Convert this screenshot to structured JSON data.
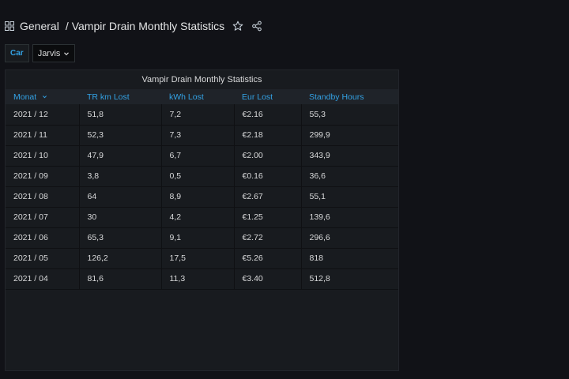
{
  "breadcrumb": {
    "folder": "General",
    "separator": "/",
    "dashboard_title": "Vampir Drain Monthly Statistics"
  },
  "icons": {
    "apps": "apps-grid-icon",
    "star": "star-icon",
    "share": "share-icon",
    "chevron": "chevron-down-icon",
    "sort": "sort-desc-icon"
  },
  "variables": {
    "label": "Car",
    "value": "Jarvis"
  },
  "panel": {
    "title": "Vampir Drain Monthly Statistics",
    "columns": [
      "Monat",
      "TR km Lost",
      "kWh Lost",
      "Eur Lost",
      "Standby Hours"
    ],
    "rows": [
      [
        "2021 / 12",
        "51,8",
        "7,2",
        "€2.16",
        "55,3"
      ],
      [
        "2021 / 11",
        "52,3",
        "7,3",
        "€2.18",
        "299,9"
      ],
      [
        "2021 / 10",
        "47,9",
        "6,7",
        "€2.00",
        "343,9"
      ],
      [
        "2021 / 09",
        "3,8",
        "0,5",
        "€0.16",
        "36,6"
      ],
      [
        "2021 / 08",
        "64",
        "8,9",
        "€2.67",
        "55,1"
      ],
      [
        "2021 / 07",
        "30",
        "4,2",
        "€1.25",
        "139,6"
      ],
      [
        "2021 / 06",
        "65,3",
        "9,1",
        "€2.72",
        "296,6"
      ],
      [
        "2021 / 05",
        "126,2",
        "17,5",
        "€5.26",
        "818"
      ],
      [
        "2021 / 04",
        "81,6",
        "11,3",
        "€3.40",
        "512,8"
      ]
    ]
  },
  "colors": {
    "background": "#111217",
    "panel": "#181b1f",
    "accent": "#33a2e5",
    "text": "#d8d9da"
  }
}
